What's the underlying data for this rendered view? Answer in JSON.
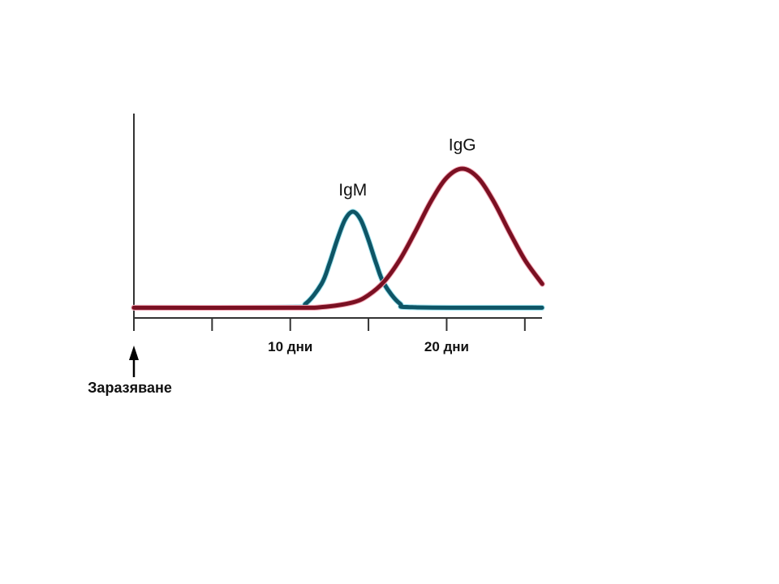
{
  "chart_data": {
    "type": "line",
    "title": "",
    "xlabel": "",
    "ylabel": "",
    "xlim": [
      0,
      26.1
    ],
    "ylim": [
      0,
      100
    ],
    "grid": false,
    "x_ticks": [
      0,
      5,
      10,
      15,
      20,
      25
    ],
    "x_tick_labels": [
      {
        "x": 10,
        "label": "10 дни"
      },
      {
        "x": 20,
        "label": "20 дни"
      }
    ],
    "event_marker": {
      "x": 0,
      "label": "Заразяване"
    },
    "series": [
      {
        "name": "IgM",
        "color": "#0e5566",
        "glow": "#9fe3ef",
        "label_at": {
          "x": 14,
          "y": 60
        },
        "x": [
          0,
          10,
          11,
          12,
          12.5,
          13,
          13.5,
          14,
          14.5,
          15,
          15.5,
          16,
          17,
          18,
          26.1
        ],
        "y": [
          5,
          5.2,
          7.1,
          16.7,
          26.5,
          38.2,
          48.1,
          52,
          48.1,
          38.2,
          26.5,
          16.7,
          7.1,
          5.2,
          5
        ]
      },
      {
        "name": "IgG",
        "color": "#7a1022",
        "glow": "#f4a7b5",
        "label_at": {
          "x": 21,
          "y": 82
        },
        "x": [
          0,
          10,
          12,
          14,
          15,
          16,
          17,
          18,
          19,
          20,
          21,
          22,
          23,
          24,
          25,
          26,
          26.1
        ],
        "y": [
          5,
          5,
          5.3,
          7.6,
          11.2,
          17.8,
          28.4,
          42.3,
          57.1,
          68.6,
          73,
          68.6,
          57.1,
          42.3,
          28.4,
          17.8,
          16.8
        ]
      }
    ]
  }
}
